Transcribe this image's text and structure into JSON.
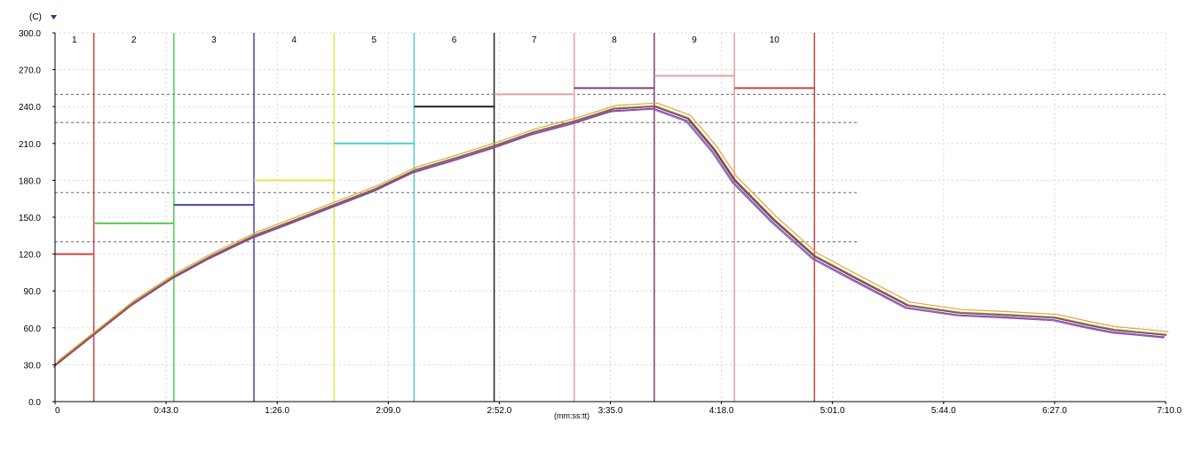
{
  "chart_data": {
    "type": "line",
    "unit_label": "(C)",
    "xlabel": "(mm:ss:tt)",
    "xlim": [
      0,
      430
    ],
    "ylim": [
      0,
      300
    ],
    "y_ticks": [
      0,
      30,
      60,
      90,
      120,
      150,
      180,
      210,
      240,
      270,
      300
    ],
    "y_tick_labels": [
      "0.0",
      "30.0",
      "60.0",
      "90.0",
      "120.0",
      "150.0",
      "180.0",
      "210.0",
      "240.0",
      "270.0",
      "300.0"
    ],
    "x_ticks": [
      0,
      43,
      86,
      129,
      172,
      215,
      258,
      301,
      344,
      387,
      430
    ],
    "x_tick_labels": [
      "0",
      "0:43.0",
      "1:26.0",
      "2:09.0",
      "2:52.0",
      "3:35.0",
      "4:18.0",
      "5:01.0",
      "5:44.0",
      "6:27.0",
      "7:10.0"
    ],
    "grid": true,
    "zone_boundaries": [
      15,
      46,
      77,
      108,
      139,
      170,
      201,
      232,
      263,
      294
    ],
    "zones": [
      {
        "label": "1",
        "start": 0,
        "end": 15,
        "setpoint": 120,
        "color": "#cc4444"
      },
      {
        "label": "2",
        "start": 15,
        "end": 46,
        "setpoint": 145,
        "color": "#55cc55"
      },
      {
        "label": "3",
        "start": 46,
        "end": 77,
        "setpoint": 160,
        "color": "#4444aa"
      },
      {
        "label": "4",
        "start": 77,
        "end": 108,
        "setpoint": 180,
        "color": "#e6e655"
      },
      {
        "label": "5",
        "start": 108,
        "end": 139,
        "setpoint": 210,
        "color": "#55cccc"
      },
      {
        "label": "6",
        "start": 139,
        "end": 170,
        "setpoint": 240,
        "color": "#222222"
      },
      {
        "label": "7",
        "start": 170,
        "end": 201,
        "setpoint": 250,
        "color": "#e6a0a0"
      },
      {
        "label": "8",
        "start": 201,
        "end": 232,
        "setpoint": 255,
        "color": "#774477"
      },
      {
        "label": "9",
        "start": 232,
        "end": 263,
        "setpoint": 265,
        "color": "#e6a0a0"
      },
      {
        "label": "10",
        "start": 263,
        "end": 294,
        "setpoint": 255,
        "color": "#cc4444"
      }
    ],
    "limit_lines": [
      {
        "value": 250,
        "x_start": 0,
        "x_end": 430
      },
      {
        "value": 227,
        "x_start": 0,
        "x_end": 311
      },
      {
        "value": 170,
        "x_start": 0,
        "x_end": 311
      },
      {
        "value": 130,
        "x_start": 0,
        "x_end": 311
      }
    ],
    "series": [
      {
        "color": "#e8a040",
        "offset_x": 3,
        "offset_y": -4,
        "x": [
          0,
          15,
          30,
          46,
          60,
          77,
          92,
          108,
          124,
          139,
          155,
          170,
          185,
          201,
          216,
          232,
          245,
          255,
          263,
          278,
          294,
          310,
          330,
          350,
          370,
          387,
          400,
          410,
          420,
          430
        ],
        "y": [
          30,
          55,
          80,
          102,
          118,
          135,
          147,
          160,
          173,
          188,
          198,
          208,
          219,
          228,
          238,
          240,
          230,
          205,
          180,
          148,
          118,
          100,
          78,
          72,
          70,
          68,
          62,
          58,
          56,
          54
        ]
      },
      {
        "color": "#aa55aa",
        "offset_x": -2,
        "offset_y": 3,
        "x": [
          0,
          15,
          30,
          46,
          60,
          77,
          92,
          108,
          124,
          139,
          155,
          170,
          185,
          201,
          216,
          232,
          245,
          255,
          263,
          278,
          294,
          310,
          330,
          350,
          370,
          387,
          400,
          410,
          420,
          430
        ],
        "y": [
          30,
          55,
          80,
          102,
          118,
          135,
          147,
          160,
          173,
          188,
          198,
          208,
          219,
          228,
          238,
          240,
          230,
          205,
          180,
          148,
          118,
          100,
          78,
          72,
          70,
          68,
          62,
          58,
          56,
          54
        ]
      },
      {
        "color": "#5555cc",
        "offset_x": -1,
        "offset_y": 2,
        "x": [
          0,
          15,
          30,
          46,
          60,
          77,
          92,
          108,
          124,
          139,
          155,
          170,
          185,
          201,
          216,
          232,
          245,
          255,
          263,
          278,
          294,
          310,
          330,
          350,
          370,
          387,
          400,
          410,
          420,
          430
        ],
        "y": [
          30,
          55,
          80,
          102,
          118,
          135,
          147,
          160,
          173,
          188,
          198,
          208,
          219,
          228,
          238,
          240,
          230,
          205,
          180,
          148,
          118,
          100,
          78,
          72,
          70,
          68,
          62,
          58,
          56,
          54
        ]
      },
      {
        "color": "#2a2a2a",
        "offset_x": 0,
        "offset_y": 0,
        "x": [
          0,
          15,
          30,
          46,
          60,
          77,
          92,
          108,
          124,
          139,
          155,
          170,
          185,
          201,
          216,
          232,
          245,
          255,
          263,
          278,
          294,
          310,
          330,
          350,
          370,
          387,
          400,
          410,
          420,
          430
        ],
        "y": [
          30,
          55,
          80,
          102,
          118,
          135,
          147,
          160,
          173,
          188,
          198,
          208,
          219,
          228,
          238,
          240,
          230,
          205,
          180,
          148,
          118,
          100,
          78,
          72,
          70,
          68,
          62,
          58,
          56,
          54
        ]
      },
      {
        "color": "#55aa55",
        "offset_x": 1,
        "offset_y": -1,
        "x": [
          0,
          15,
          30,
          46,
          60,
          77,
          92,
          108,
          124,
          139,
          155,
          170,
          185,
          201,
          216,
          232,
          245,
          255,
          263,
          278,
          294,
          310,
          330,
          350,
          370,
          387,
          400,
          410,
          420,
          430
        ],
        "y": [
          30,
          55,
          80,
          102,
          118,
          135,
          147,
          160,
          173,
          188,
          198,
          208,
          219,
          228,
          238,
          240,
          230,
          205,
          180,
          148,
          118,
          100,
          78,
          72,
          70,
          68,
          62,
          58,
          56,
          54
        ]
      },
      {
        "color": "#cc3333",
        "offset_x": 1,
        "offset_y": 0,
        "x": [
          0,
          15,
          30,
          46,
          60,
          77,
          92,
          108,
          124,
          139,
          155,
          170,
          185,
          201,
          216,
          232,
          245,
          255,
          263,
          278,
          294,
          310,
          330,
          350,
          370,
          387,
          400,
          410,
          420,
          430
        ],
        "y": [
          30,
          55,
          80,
          102,
          118,
          135,
          147,
          160,
          173,
          188,
          198,
          208,
          219,
          228,
          238,
          240,
          230,
          205,
          180,
          148,
          118,
          100,
          78,
          72,
          70,
          68,
          62,
          58,
          56,
          54
        ]
      }
    ]
  }
}
